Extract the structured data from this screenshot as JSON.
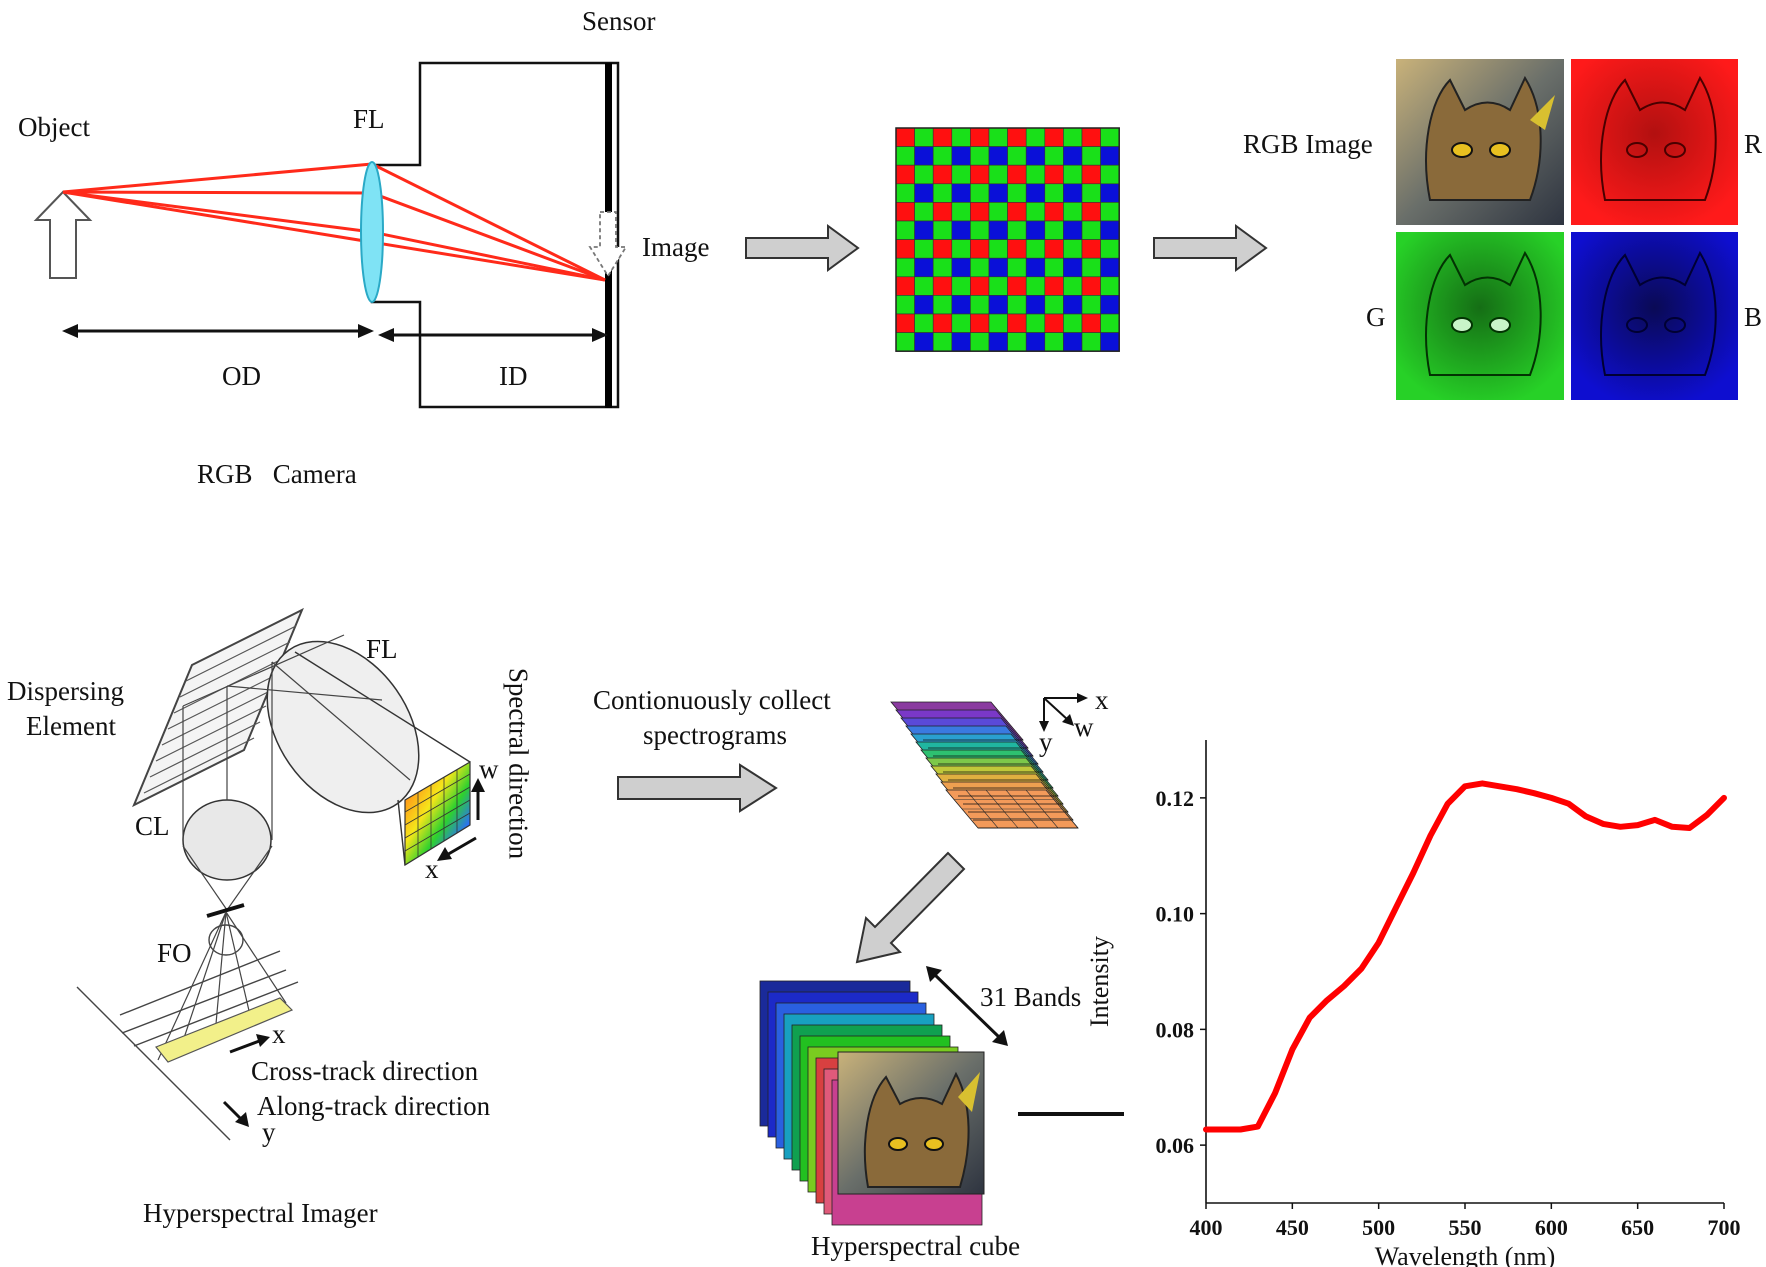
{
  "rgb_camera": {
    "sensor_label": "Sensor",
    "object_label": "Object",
    "fl_label": "FL",
    "image_label": "Image",
    "od_label": "OD",
    "id_label": "ID",
    "caption": "RGB   Camera",
    "ray_color": "#ff2a1a",
    "lens_color": "#7fe3f5"
  },
  "bayer": {
    "rows": 12,
    "cols": 12,
    "colors": {
      "red": "#ff1010",
      "green": "#19e019",
      "blue": "#0a10d8"
    }
  },
  "rgb_output": {
    "rgb_label": "RGB Image",
    "r_label": "R",
    "g_label": "G",
    "b_label": "B"
  },
  "hyperspectral_imager": {
    "dispersing_label_1": "Dispersing",
    "dispersing_label_2": "Element",
    "fl_label": "FL",
    "cl_label": "CL",
    "fo_label": "FO",
    "spectral_direction_label": "Spectral direction",
    "w_label": "w",
    "x_label": "x",
    "cross_track_x": "x",
    "cross_track_label": "Cross-track direction",
    "along_track_label": "Along-track direction",
    "along_track_y": "y",
    "caption": "Hyperspectral Imager"
  },
  "process": {
    "collect_label_1": "Contionuously collect",
    "collect_label_2": "spectrograms",
    "axis_x": "x",
    "axis_w": "w",
    "axis_y": "y",
    "bands_label": "31 Bands",
    "cube_caption": "Hyperspectral cube"
  },
  "chart_data": {
    "type": "line",
    "xlabel": "Wavelength (nm)",
    "ylabel": "Intensity",
    "xlim": [
      400,
      700
    ],
    "ylim": [
      0.05,
      0.13
    ],
    "x_ticks": [
      "400",
      "450",
      "500",
      "550",
      "600",
      "650",
      "700"
    ],
    "y_ticks": [
      "0.06",
      "0.08",
      "0.10",
      "0.12"
    ],
    "series": [
      {
        "color": "#ff0000",
        "x": [
          400,
          410,
          420,
          430,
          440,
          450,
          460,
          470,
          480,
          490,
          500,
          510,
          520,
          530,
          540,
          550,
          560,
          570,
          580,
          590,
          600,
          610,
          620,
          630,
          640,
          650,
          660,
          670,
          680,
          690,
          700
        ],
        "y": [
          0.0627,
          0.0627,
          0.0627,
          0.0632,
          0.069,
          0.0765,
          0.082,
          0.085,
          0.0875,
          0.0905,
          0.095,
          0.101,
          0.107,
          0.1135,
          0.119,
          0.122,
          0.1225,
          0.122,
          0.1215,
          0.1208,
          0.12,
          0.119,
          0.1168,
          0.1155,
          0.115,
          0.1153,
          0.1162,
          0.115,
          0.1148,
          0.117,
          0.12
        ]
      }
    ],
    "grid": false
  }
}
